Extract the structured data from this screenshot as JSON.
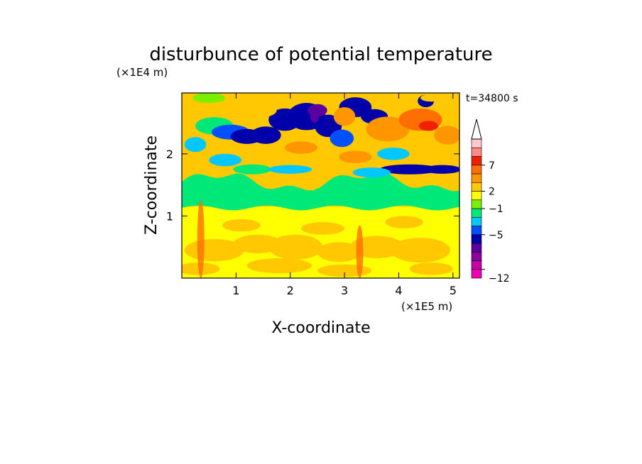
{
  "chart_data": {
    "type": "heatmap",
    "title": "disturbunce of potential temperature",
    "time_label": "t=34800 s",
    "xlabel": "X-coordinate",
    "ylabel": "Z-coordinate",
    "x_unit": "(×1E5 m)",
    "y_unit": "(×1E4 m)",
    "x_range": [
      0,
      5.12
    ],
    "y_range": [
      0,
      2.98
    ],
    "x_ticks": [
      "1",
      "2",
      "3",
      "4",
      "5"
    ],
    "x_tick_values": [
      1,
      2,
      3,
      4,
      5
    ],
    "y_ticks": [
      "1",
      "2"
    ],
    "y_tick_values": [
      1,
      2
    ],
    "colorbar": {
      "colors": [
        "#f000b0",
        "#c800a8",
        "#8c00a0",
        "#5a00a0",
        "#0000aa",
        "#0050ff",
        "#00c8ff",
        "#00e878",
        "#78f000",
        "#ffff00",
        "#ffc800",
        "#ff9600",
        "#ff6e00",
        "#f02000",
        "#ff8a8a",
        "#ffc8c8"
      ],
      "tick_labels": [
        "-12",
        "-5",
        "-1",
        "2",
        "7"
      ],
      "tick_after_level": [
        0,
        4,
        7,
        9,
        12
      ],
      "extend_top": true
    },
    "fields": {
      "lower_layer": "#ffff00",
      "lower_blobs": "#ffc800",
      "transition_band": "#00e878",
      "upper_background": "#ffc800"
    },
    "grid": false,
    "legend": "right colorbar"
  }
}
